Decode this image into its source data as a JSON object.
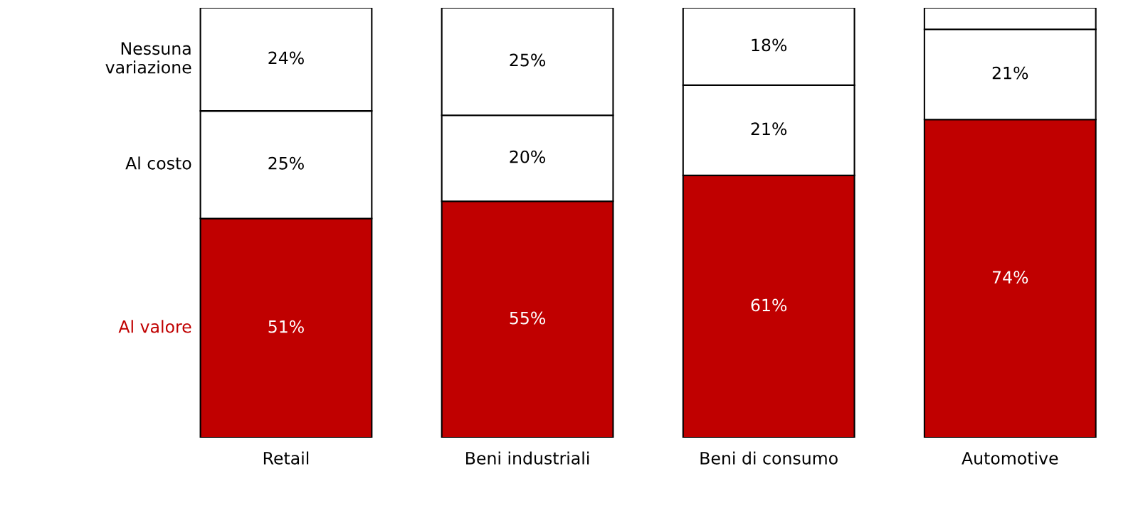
{
  "chart_data": {
    "type": "bar",
    "stacked": true,
    "categories": [
      "Retail",
      "Beni industriali",
      "Beni di consumo",
      "Automotive"
    ],
    "series": [
      {
        "name": "Al valore",
        "color": "#c00000",
        "values": [
          51,
          55,
          61,
          74
        ],
        "value_labels": [
          "51%",
          "55%",
          "61%",
          "74%"
        ]
      },
      {
        "name": "Al costo",
        "color": "#ffffff",
        "values": [
          25,
          20,
          21,
          21
        ],
        "value_labels": [
          "25%",
          "20%",
          "21%",
          "21%"
        ]
      },
      {
        "name": "Nessuna variazione",
        "color": "#ffffff",
        "values": [
          24,
          25,
          18,
          5
        ],
        "value_labels": [
          "24%",
          "25%",
          "18%",
          null
        ]
      }
    ],
    "ylim": [
      0,
      100
    ],
    "tick_labels": "x",
    "grid": false,
    "legend": "left"
  }
}
